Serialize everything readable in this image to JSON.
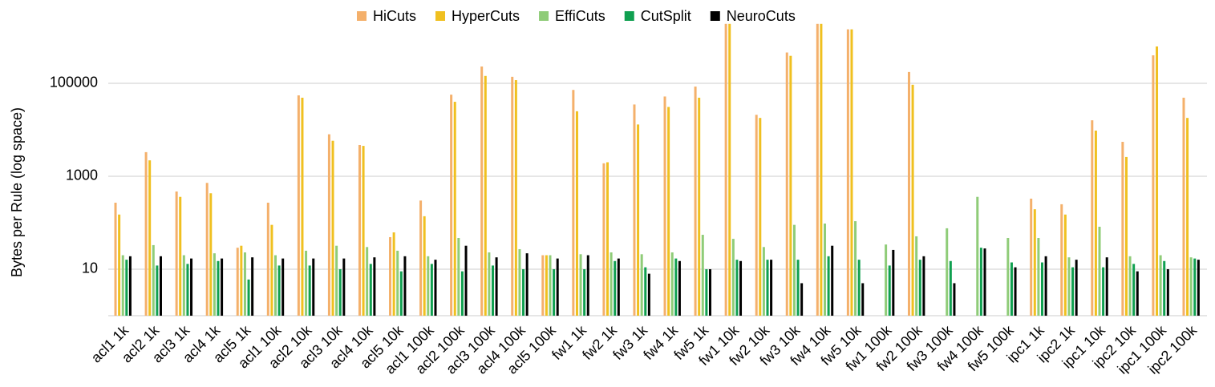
{
  "chart_data": {
    "type": "bar",
    "log_scale": true,
    "grid": true,
    "legend": "top",
    "y_label": "Bytes per Rule (log space)",
    "categories": [
      "acl1 1k",
      "acl2 1k",
      "acl3 1k",
      "acl4 1k",
      "acl5 1k",
      "acl1 10k",
      "acl2 10k",
      "acl3 10k",
      "acl4 10k",
      "acl5 10k",
      "acl1 100k",
      "acl2 100k",
      "acl3 100k",
      "acl4 100k",
      "acl5 100k",
      "fw1 1k",
      "fw2 1k",
      "fw3 1k",
      "fw4 1k",
      "fw5 1k",
      "fw1 10k",
      "fw2 10k",
      "fw3 10k",
      "fw4 10k",
      "fw5 10k",
      "fw1 100k",
      "fw2 100k",
      "fw3 100k",
      "fw4 100k",
      "fw5 100k",
      "ipc1 1k",
      "ipc2 1k",
      "ipc1 10k",
      "ipc2 10k",
      "ipc1 100k",
      "ipc2 100k"
    ],
    "series": [
      {
        "name": "HiCuts",
        "color": "#f4b06b",
        "values": [
          270,
          3300,
          470,
          720,
          29,
          270,
          55000,
          8000,
          4700,
          49,
          300,
          57000,
          230000,
          138000,
          20,
          72000,
          1900,
          35000,
          52000,
          85000,
          1900000,
          21000,
          460000,
          1900000,
          1450000,
          null,
          175000,
          null,
          null,
          null,
          330,
          250,
          16000,
          5500,
          400000,
          49000
        ]
      },
      {
        "name": "HyperCuts",
        "color": "#f0c020",
        "values": [
          150,
          2200,
          360,
          430,
          32,
          90,
          49000,
          5800,
          4500,
          62,
          138,
          40000,
          144000,
          117000,
          20,
          25000,
          2000,
          13000,
          31000,
          49000,
          1900000,
          18000,
          390000,
          1900000,
          1450000,
          null,
          93000,
          null,
          null,
          null,
          195,
          150,
          9600,
          2600,
          620000,
          18000
        ]
      },
      {
        "name": "EffiCuts",
        "color": "#8fcc78",
        "values": [
          20,
          33,
          20,
          22,
          23,
          20,
          25,
          32,
          30,
          25,
          19,
          47,
          23,
          27,
          20,
          21,
          23,
          21,
          23,
          55,
          45,
          30,
          90,
          96,
          108,
          34,
          51,
          76,
          360,
          47,
          47,
          18,
          82,
          19,
          20,
          18
        ]
      },
      {
        "name": "CutSplit",
        "color": "#10a050",
        "values": [
          16,
          12,
          13,
          15,
          6,
          12,
          12,
          10,
          13,
          9,
          13,
          9,
          12,
          10,
          10,
          10,
          15,
          11,
          17,
          10,
          16,
          16,
          16,
          19,
          16,
          12,
          16,
          15,
          29,
          14,
          14,
          11,
          11,
          13,
          15,
          17
        ]
      },
      {
        "name": "NeuroCuts",
        "color": "#000000",
        "values": [
          19,
          19,
          17,
          17,
          18,
          17,
          17,
          17,
          18,
          19,
          16,
          32,
          18,
          22,
          17,
          20,
          17,
          8,
          15,
          10,
          15,
          16,
          5,
          32,
          5,
          26,
          19,
          5,
          28,
          11,
          19,
          16,
          18,
          9,
          10,
          16
        ]
      }
    ],
    "ylim": [
      1,
      2000000
    ],
    "yticks": [
      10,
      1000,
      100000
    ]
  }
}
